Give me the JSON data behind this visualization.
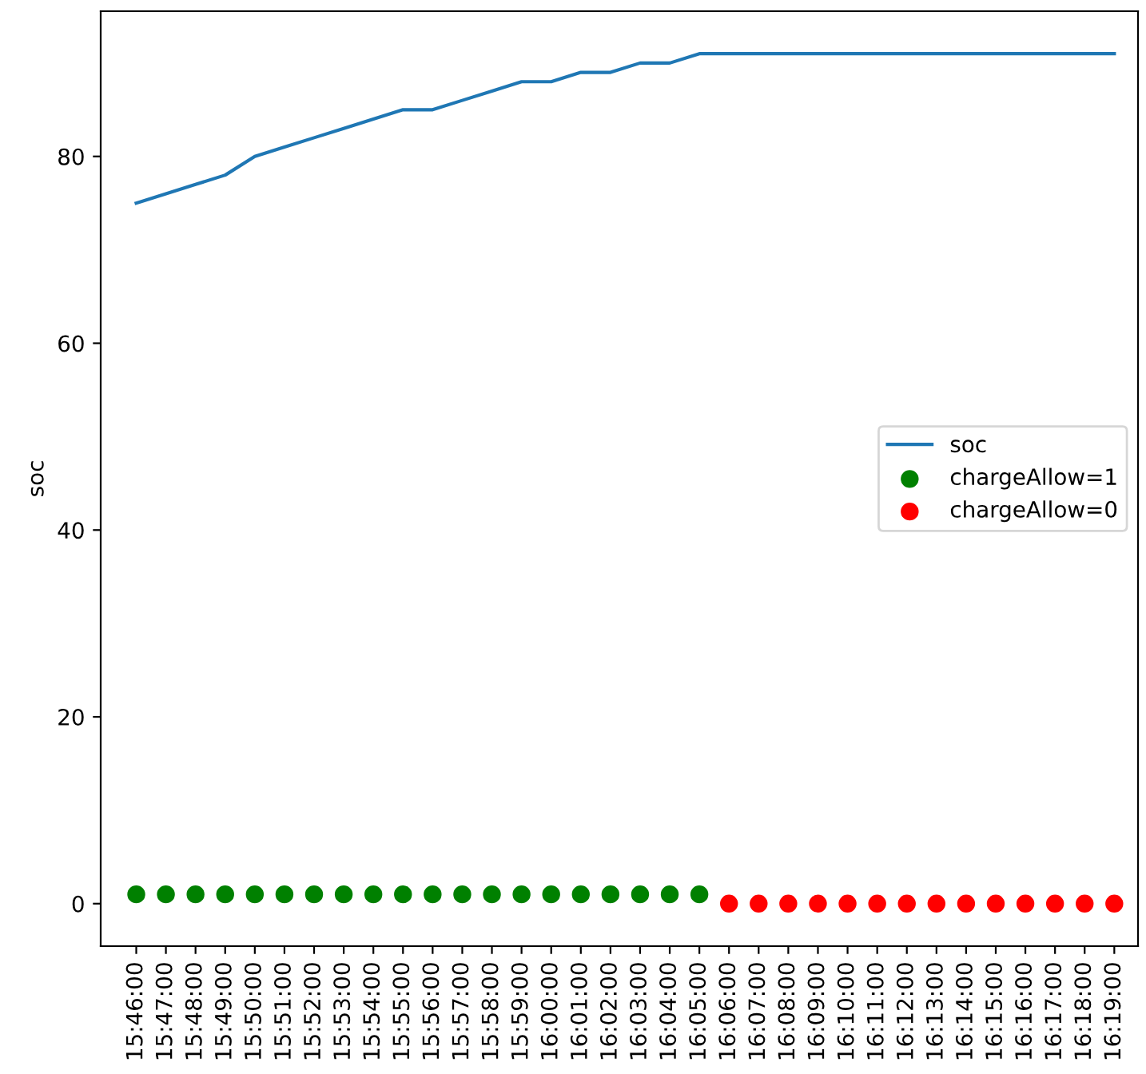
{
  "chart_data": {
    "type": "line",
    "ylabel": "soc",
    "categories": [
      "15:46:00",
      "15:47:00",
      "15:48:00",
      "15:49:00",
      "15:50:00",
      "15:51:00",
      "15:52:00",
      "15:53:00",
      "15:54:00",
      "15:55:00",
      "15:56:00",
      "15:57:00",
      "15:58:00",
      "15:59:00",
      "16:00:00",
      "16:01:00",
      "16:02:00",
      "16:03:00",
      "16:04:00",
      "16:05:00",
      "16:06:00",
      "16:07:00",
      "16:08:00",
      "16:09:00",
      "16:10:00",
      "16:11:00",
      "16:12:00",
      "16:13:00",
      "16:14:00",
      "16:15:00",
      "16:16:00",
      "16:17:00",
      "16:18:00",
      "16:19:00"
    ],
    "series": [
      {
        "name": "soc",
        "color": "#1f77b4",
        "values": [
          75,
          76,
          77,
          78,
          80,
          81,
          82,
          83,
          84,
          85,
          85,
          86,
          87,
          88,
          88,
          89,
          89,
          90,
          90,
          91,
          91,
          91,
          91,
          91,
          91,
          91,
          91,
          91,
          91,
          91,
          91,
          91,
          91,
          91
        ]
      },
      {
        "name": "chargeAllow=1",
        "type": "scatter",
        "marker": "circle",
        "color": "#008000",
        "values": [
          1,
          1,
          1,
          1,
          1,
          1,
          1,
          1,
          1,
          1,
          1,
          1,
          1,
          1,
          1,
          1,
          1,
          1,
          1,
          1,
          null,
          null,
          null,
          null,
          null,
          null,
          null,
          null,
          null,
          null,
          null,
          null,
          null,
          null
        ]
      },
      {
        "name": "chargeAllow=0",
        "type": "scatter",
        "marker": "circle",
        "color": "#ff0000",
        "values": [
          null,
          null,
          null,
          null,
          null,
          null,
          null,
          null,
          null,
          null,
          null,
          null,
          null,
          null,
          null,
          null,
          null,
          null,
          null,
          null,
          0,
          0,
          0,
          0,
          0,
          0,
          0,
          0,
          0,
          0,
          0,
          0,
          0,
          0
        ]
      }
    ],
    "ylim": [
      -4.55,
      95.55
    ],
    "yticks": [
      0,
      20,
      40,
      60,
      80
    ],
    "legend": "right",
    "line_style": "solid",
    "grid": false
  }
}
